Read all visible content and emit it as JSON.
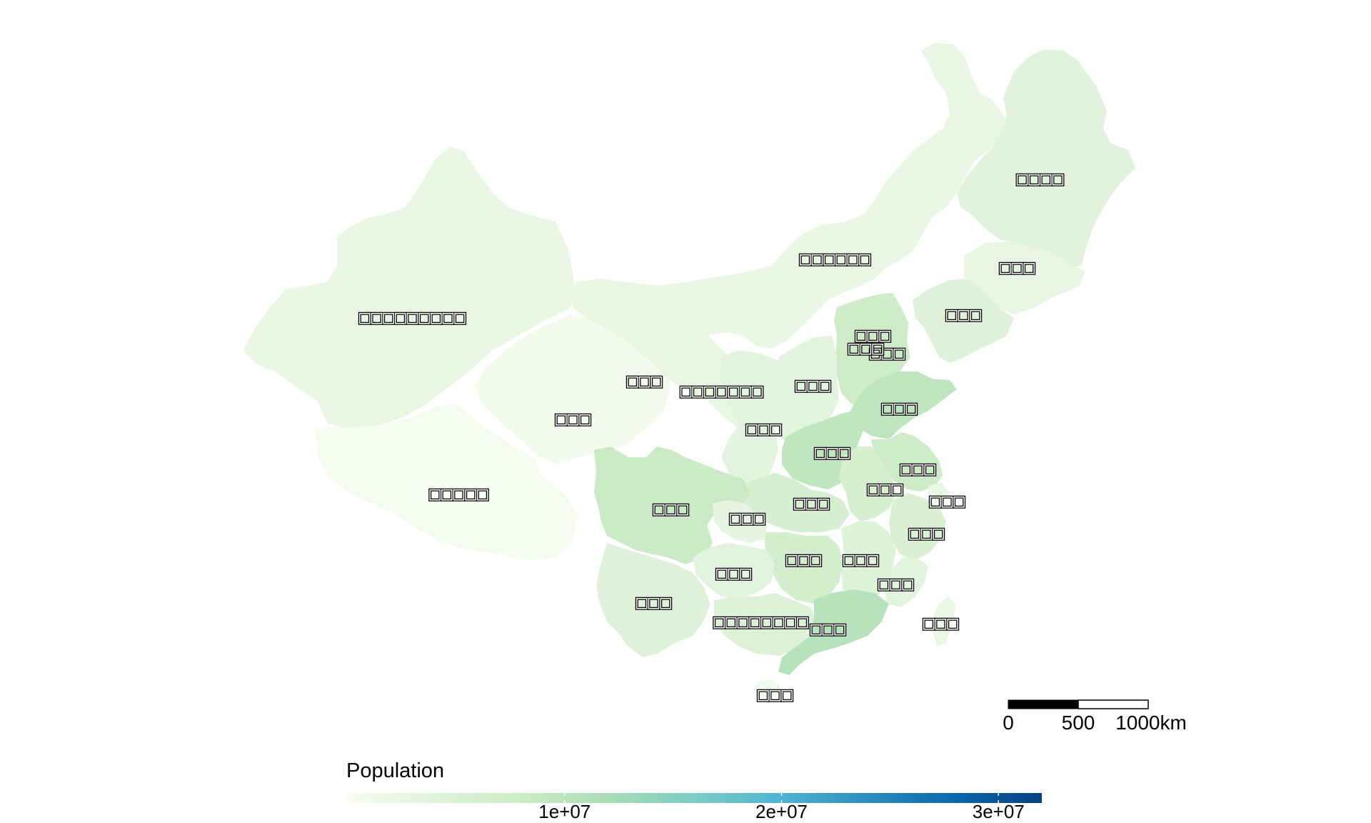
{
  "colors": {
    "ramp": [
      "#f7fcf0",
      "#e0f3db",
      "#ccebc5",
      "#a8ddb5",
      "#7bccc4",
      "#4eb3d3",
      "#2b8cbe",
      "#0868ac",
      "#084081"
    ],
    "label_fill": "#ffffff",
    "label_stroke": "#000000"
  },
  "map": {
    "provinces": [
      {
        "id": "xinjiang",
        "label": "□□□□□□□□□",
        "value": 2500000
      },
      {
        "id": "tibet",
        "label": "□□□□□",
        "value": 300000
      },
      {
        "id": "qinghai",
        "label": "□□□",
        "value": 600000
      },
      {
        "id": "gansu",
        "label": "□□□",
        "value": 2600000
      },
      {
        "id": "ningxia",
        "label": "□□□□□□□",
        "value": 700000
      },
      {
        "id": "inner_mongolia",
        "label": "□□□□□□",
        "value": 2500000
      },
      {
        "id": "heilongjiang",
        "label": "□□□□",
        "value": 3800000
      },
      {
        "id": "jilin",
        "label": "□□□",
        "value": 2700000
      },
      {
        "id": "liaoning",
        "label": "□□□",
        "value": 4300000
      },
      {
        "id": "beijing",
        "label": "□□□",
        "value": 2200000
      },
      {
        "id": "tianjin",
        "label": "□□□",
        "value": 1400000
      },
      {
        "id": "hebei",
        "label": "□□□",
        "value": 7400000
      },
      {
        "id": "shanxi",
        "label": "□□□",
        "value": 3500000
      },
      {
        "id": "shaanxi",
        "label": "□□□",
        "value": 3700000
      },
      {
        "id": "shandong",
        "label": "□□□",
        "value": 9700000
      },
      {
        "id": "henan",
        "label": "□□□",
        "value": 9400000
      },
      {
        "id": "jiangsu",
        "label": "□□□",
        "value": 7900000
      },
      {
        "id": "anhui",
        "label": "□□□",
        "value": 6100000
      },
      {
        "id": "shanghai",
        "label": "□□□",
        "value": 2400000
      },
      {
        "id": "zhejiang",
        "label": "□□□",
        "value": 5500000
      },
      {
        "id": "hubei",
        "label": "□□□",
        "value": 5800000
      },
      {
        "id": "hunan",
        "label": "□□□",
        "value": 6600000
      },
      {
        "id": "jiangxi",
        "label": "□□□",
        "value": 4500000
      },
      {
        "id": "fujian",
        "label": "□□□",
        "value": 3700000
      },
      {
        "id": "sichuan",
        "label": "□□□",
        "value": 8300000
      },
      {
        "id": "chongqing",
        "label": "□□□",
        "value": 2900000
      },
      {
        "id": "guizhou",
        "label": "□□□",
        "value": 3500000
      },
      {
        "id": "yunnan",
        "label": "□□□",
        "value": 4600000
      },
      {
        "id": "guangxi",
        "label": "□□□□□□□□",
        "value": 4900000
      },
      {
        "id": "guangdong",
        "label": "□□□",
        "value": 10400000
      },
      {
        "id": "hainan",
        "label": "□□□",
        "value": 900000
      },
      {
        "id": "taiwan",
        "label": "□□□",
        "value": 2300000
      }
    ]
  },
  "scale_bar": {
    "labels": [
      "0",
      "500",
      "1000km"
    ]
  },
  "legend": {
    "title": "Population",
    "ticks": [
      {
        "value": 10000000,
        "label": "1e+07"
      },
      {
        "value": 20000000,
        "label": "2e+07"
      },
      {
        "value": 30000000,
        "label": "3e+07"
      }
    ],
    "min": 0,
    "max": 32000000
  }
}
